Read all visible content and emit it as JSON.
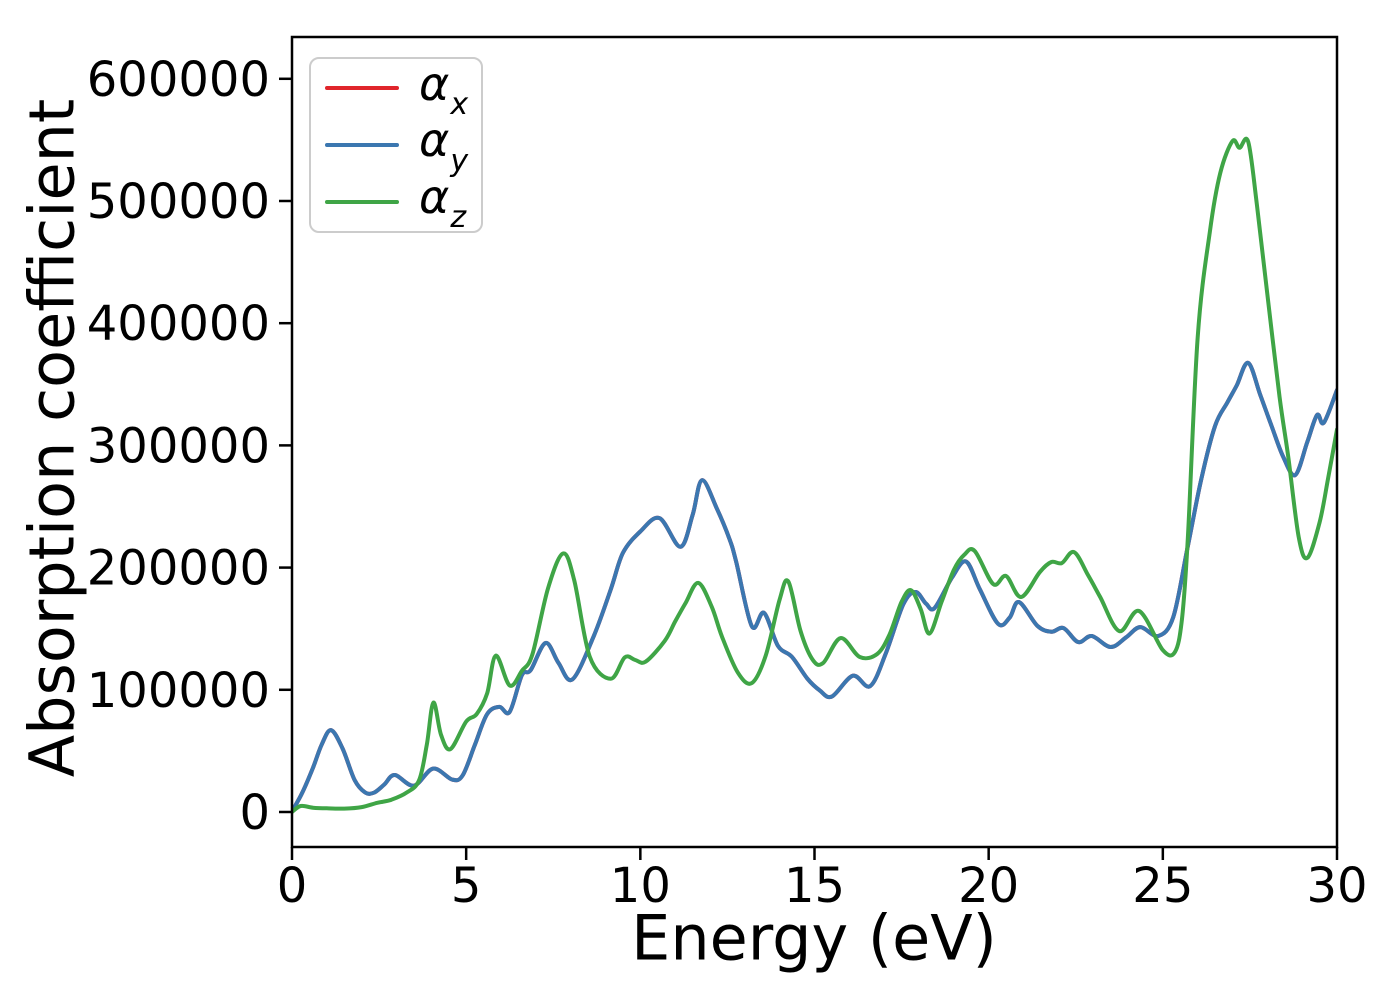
{
  "chart_data": {
    "type": "line",
    "title": "",
    "xlabel": "Energy (eV)",
    "ylabel": "Absorption coefficient",
    "xlim": [
      0,
      30
    ],
    "ylim": [
      -28650,
      634200
    ],
    "x_ticks": {
      "values": [
        0,
        5,
        10,
        15,
        20,
        25,
        30
      ],
      "labels": [
        "0",
        "5",
        "10",
        "15",
        "20",
        "25",
        "30"
      ]
    },
    "y_ticks": {
      "values": [
        0,
        100000,
        200000,
        300000,
        400000,
        500000,
        600000
      ],
      "labels": [
        "0",
        "100000",
        "200000",
        "300000",
        "400000",
        "500000",
        "600000"
      ]
    },
    "grid": false,
    "legend_position": "upper left",
    "legend": [
      {
        "symbol": "α",
        "sub": "x",
        "color": "#e0252b"
      },
      {
        "symbol": "α",
        "sub": "y",
        "color": "#3b77b0"
      },
      {
        "symbol": "α",
        "sub": "z",
        "color": "#3fa546"
      }
    ],
    "series": [
      {
        "name": "alpha_x",
        "color": "#e0252b",
        "note": "hidden exactly beneath alpha_y",
        "points": [
          [
            0,
            500
          ],
          [
            0.3,
            16000
          ],
          [
            0.6,
            36000
          ],
          [
            0.85,
            55000
          ],
          [
            1.12,
            67000
          ],
          [
            1.45,
            52000
          ],
          [
            1.8,
            26000
          ],
          [
            2.1,
            16000
          ],
          [
            2.35,
            15800
          ],
          [
            2.65,
            22500
          ],
          [
            2.95,
            30300
          ],
          [
            3.5,
            21500
          ],
          [
            4.05,
            35500
          ],
          [
            4.6,
            26500
          ],
          [
            4.9,
            30000
          ],
          [
            5.25,
            55000
          ],
          [
            5.6,
            80000
          ],
          [
            5.95,
            86000
          ],
          [
            6.25,
            82000
          ],
          [
            6.6,
            112000
          ],
          [
            6.85,
            116000
          ],
          [
            7.28,
            138300
          ],
          [
            7.65,
            122000
          ],
          [
            8.05,
            108500
          ],
          [
            8.65,
            143000
          ],
          [
            9.15,
            182000
          ],
          [
            9.5,
            212000
          ],
          [
            10.0,
            229500
          ],
          [
            10.55,
            240500
          ],
          [
            11.15,
            217000
          ],
          [
            11.5,
            243000
          ],
          [
            11.77,
            271500
          ],
          [
            12.2,
            248000
          ],
          [
            12.55,
            224000
          ],
          [
            12.75,
            205000
          ],
          [
            13.2,
            152000
          ],
          [
            13.55,
            163000
          ],
          [
            13.95,
            136000
          ],
          [
            14.35,
            127000
          ],
          [
            14.8,
            109000
          ],
          [
            15.15,
            99500
          ],
          [
            15.5,
            94500
          ],
          [
            16.1,
            111500
          ],
          [
            16.6,
            103000
          ],
          [
            17.05,
            130000
          ],
          [
            17.55,
            170000
          ],
          [
            17.9,
            180000
          ],
          [
            18.2,
            170500
          ],
          [
            18.45,
            167000
          ],
          [
            18.95,
            192000
          ],
          [
            19.35,
            205000
          ],
          [
            19.75,
            182000
          ],
          [
            20.27,
            154000
          ],
          [
            20.6,
            159000
          ],
          [
            20.87,
            171800
          ],
          [
            21.4,
            152300
          ],
          [
            21.8,
            147500
          ],
          [
            22.15,
            150500
          ],
          [
            22.57,
            139000
          ],
          [
            22.96,
            144000
          ],
          [
            23.5,
            135000
          ],
          [
            23.95,
            143000
          ],
          [
            24.35,
            151300
          ],
          [
            24.87,
            144000
          ],
          [
            25.3,
            159600
          ],
          [
            25.7,
            215000
          ],
          [
            26.1,
            272000
          ],
          [
            26.5,
            316000
          ],
          [
            26.85,
            335000
          ],
          [
            27.12,
            349000
          ],
          [
            27.45,
            367500
          ],
          [
            27.8,
            341000
          ],
          [
            28.12,
            316000
          ],
          [
            28.45,
            291000
          ],
          [
            28.8,
            275700
          ],
          [
            29.15,
            303000
          ],
          [
            29.43,
            324900
          ],
          [
            29.62,
            318500
          ],
          [
            30,
            345300
          ]
        ]
      },
      {
        "name": "alpha_y",
        "color": "#3b77b0",
        "points": [
          [
            0,
            500
          ],
          [
            0.3,
            16000
          ],
          [
            0.6,
            36000
          ],
          [
            0.85,
            55000
          ],
          [
            1.12,
            67000
          ],
          [
            1.45,
            52000
          ],
          [
            1.8,
            26000
          ],
          [
            2.1,
            16000
          ],
          [
            2.35,
            15800
          ],
          [
            2.65,
            22500
          ],
          [
            2.95,
            30300
          ],
          [
            3.5,
            21500
          ],
          [
            4.05,
            35500
          ],
          [
            4.6,
            26500
          ],
          [
            4.9,
            30000
          ],
          [
            5.25,
            55000
          ],
          [
            5.6,
            80000
          ],
          [
            5.95,
            86000
          ],
          [
            6.25,
            82000
          ],
          [
            6.6,
            112000
          ],
          [
            6.85,
            116000
          ],
          [
            7.28,
            138300
          ],
          [
            7.65,
            122000
          ],
          [
            8.05,
            108500
          ],
          [
            8.65,
            143000
          ],
          [
            9.15,
            182000
          ],
          [
            9.5,
            212000
          ],
          [
            10.0,
            229500
          ],
          [
            10.55,
            240500
          ],
          [
            11.15,
            217000
          ],
          [
            11.5,
            243000
          ],
          [
            11.77,
            271500
          ],
          [
            12.2,
            248000
          ],
          [
            12.55,
            224000
          ],
          [
            12.75,
            205000
          ],
          [
            13.2,
            152000
          ],
          [
            13.55,
            163000
          ],
          [
            13.95,
            136000
          ],
          [
            14.35,
            127000
          ],
          [
            14.8,
            109000
          ],
          [
            15.15,
            99500
          ],
          [
            15.5,
            94500
          ],
          [
            16.1,
            111500
          ],
          [
            16.6,
            103000
          ],
          [
            17.05,
            130000
          ],
          [
            17.55,
            170000
          ],
          [
            17.9,
            180000
          ],
          [
            18.2,
            170500
          ],
          [
            18.45,
            167000
          ],
          [
            18.95,
            192000
          ],
          [
            19.35,
            205000
          ],
          [
            19.75,
            182000
          ],
          [
            20.27,
            154000
          ],
          [
            20.6,
            159000
          ],
          [
            20.87,
            171800
          ],
          [
            21.4,
            152300
          ],
          [
            21.8,
            147500
          ],
          [
            22.15,
            150500
          ],
          [
            22.57,
            139000
          ],
          [
            22.96,
            144000
          ],
          [
            23.5,
            135000
          ],
          [
            23.95,
            143000
          ],
          [
            24.35,
            151300
          ],
          [
            24.87,
            144000
          ],
          [
            25.3,
            159600
          ],
          [
            25.7,
            215000
          ],
          [
            26.1,
            272000
          ],
          [
            26.5,
            316000
          ],
          [
            26.85,
            335000
          ],
          [
            27.12,
            349000
          ],
          [
            27.45,
            367500
          ],
          [
            27.8,
            341000
          ],
          [
            28.12,
            316000
          ],
          [
            28.45,
            291000
          ],
          [
            28.8,
            275700
          ],
          [
            29.15,
            303000
          ],
          [
            29.43,
            324900
          ],
          [
            29.62,
            318500
          ],
          [
            30,
            345300
          ]
        ]
      },
      {
        "name": "alpha_z",
        "color": "#3fa546",
        "points": [
          [
            0,
            0
          ],
          [
            0.25,
            4900
          ],
          [
            0.6,
            3500
          ],
          [
            1.0,
            3000
          ],
          [
            1.5,
            2800
          ],
          [
            2.0,
            4000
          ],
          [
            2.45,
            7500
          ],
          [
            2.85,
            10000
          ],
          [
            3.3,
            16000
          ],
          [
            3.65,
            26000
          ],
          [
            3.87,
            55000
          ],
          [
            4.06,
            89500
          ],
          [
            4.28,
            63000
          ],
          [
            4.55,
            51500
          ],
          [
            5.0,
            74000
          ],
          [
            5.3,
            80000
          ],
          [
            5.6,
            97000
          ],
          [
            5.85,
            128000
          ],
          [
            6.25,
            103500
          ],
          [
            6.6,
            115500
          ],
          [
            6.9,
            129000
          ],
          [
            7.35,
            183000
          ],
          [
            7.78,
            211500
          ],
          [
            8.1,
            190000
          ],
          [
            8.55,
            127000
          ],
          [
            9.15,
            109000
          ],
          [
            9.55,
            126500
          ],
          [
            9.85,
            124500
          ],
          [
            10.15,
            123000
          ],
          [
            10.7,
            140000
          ],
          [
            11.0,
            156000
          ],
          [
            11.3,
            171000
          ],
          [
            11.66,
            187500
          ],
          [
            12.05,
            168000
          ],
          [
            12.35,
            143000
          ],
          [
            12.8,
            114000
          ],
          [
            13.2,
            105500
          ],
          [
            13.6,
            128000
          ],
          [
            14.0,
            174000
          ],
          [
            14.25,
            188500
          ],
          [
            14.6,
            148000
          ],
          [
            14.95,
            124500
          ],
          [
            15.25,
            122000
          ],
          [
            15.75,
            142300
          ],
          [
            16.3,
            126800
          ],
          [
            16.8,
            129300
          ],
          [
            17.15,
            145000
          ],
          [
            17.5,
            172000
          ],
          [
            17.77,
            181500
          ],
          [
            18.05,
            166000
          ],
          [
            18.3,
            146000
          ],
          [
            18.65,
            172000
          ],
          [
            19.0,
            198000
          ],
          [
            19.3,
            210500
          ],
          [
            19.6,
            213600
          ],
          [
            20.13,
            186500
          ],
          [
            20.5,
            193100
          ],
          [
            20.93,
            175900
          ],
          [
            21.47,
            196400
          ],
          [
            21.8,
            204600
          ],
          [
            22.1,
            203700
          ],
          [
            22.45,
            212700
          ],
          [
            22.85,
            194000
          ],
          [
            23.2,
            176000
          ],
          [
            23.75,
            148000
          ],
          [
            24.32,
            164500
          ],
          [
            25.0,
            132500
          ],
          [
            25.35,
            131000
          ],
          [
            25.55,
            158000
          ],
          [
            25.72,
            225000
          ],
          [
            26.0,
            388500
          ],
          [
            26.35,
            475000
          ],
          [
            26.65,
            523000
          ],
          [
            27.0,
            549000
          ],
          [
            27.2,
            543500
          ],
          [
            27.45,
            548500
          ],
          [
            27.7,
            497000
          ],
          [
            28.0,
            424000
          ],
          [
            28.35,
            340000
          ],
          [
            28.6,
            291000
          ],
          [
            28.9,
            225000
          ],
          [
            29.15,
            208000
          ],
          [
            29.5,
            237000
          ],
          [
            29.75,
            274000
          ],
          [
            30,
            313000
          ]
        ]
      }
    ]
  }
}
